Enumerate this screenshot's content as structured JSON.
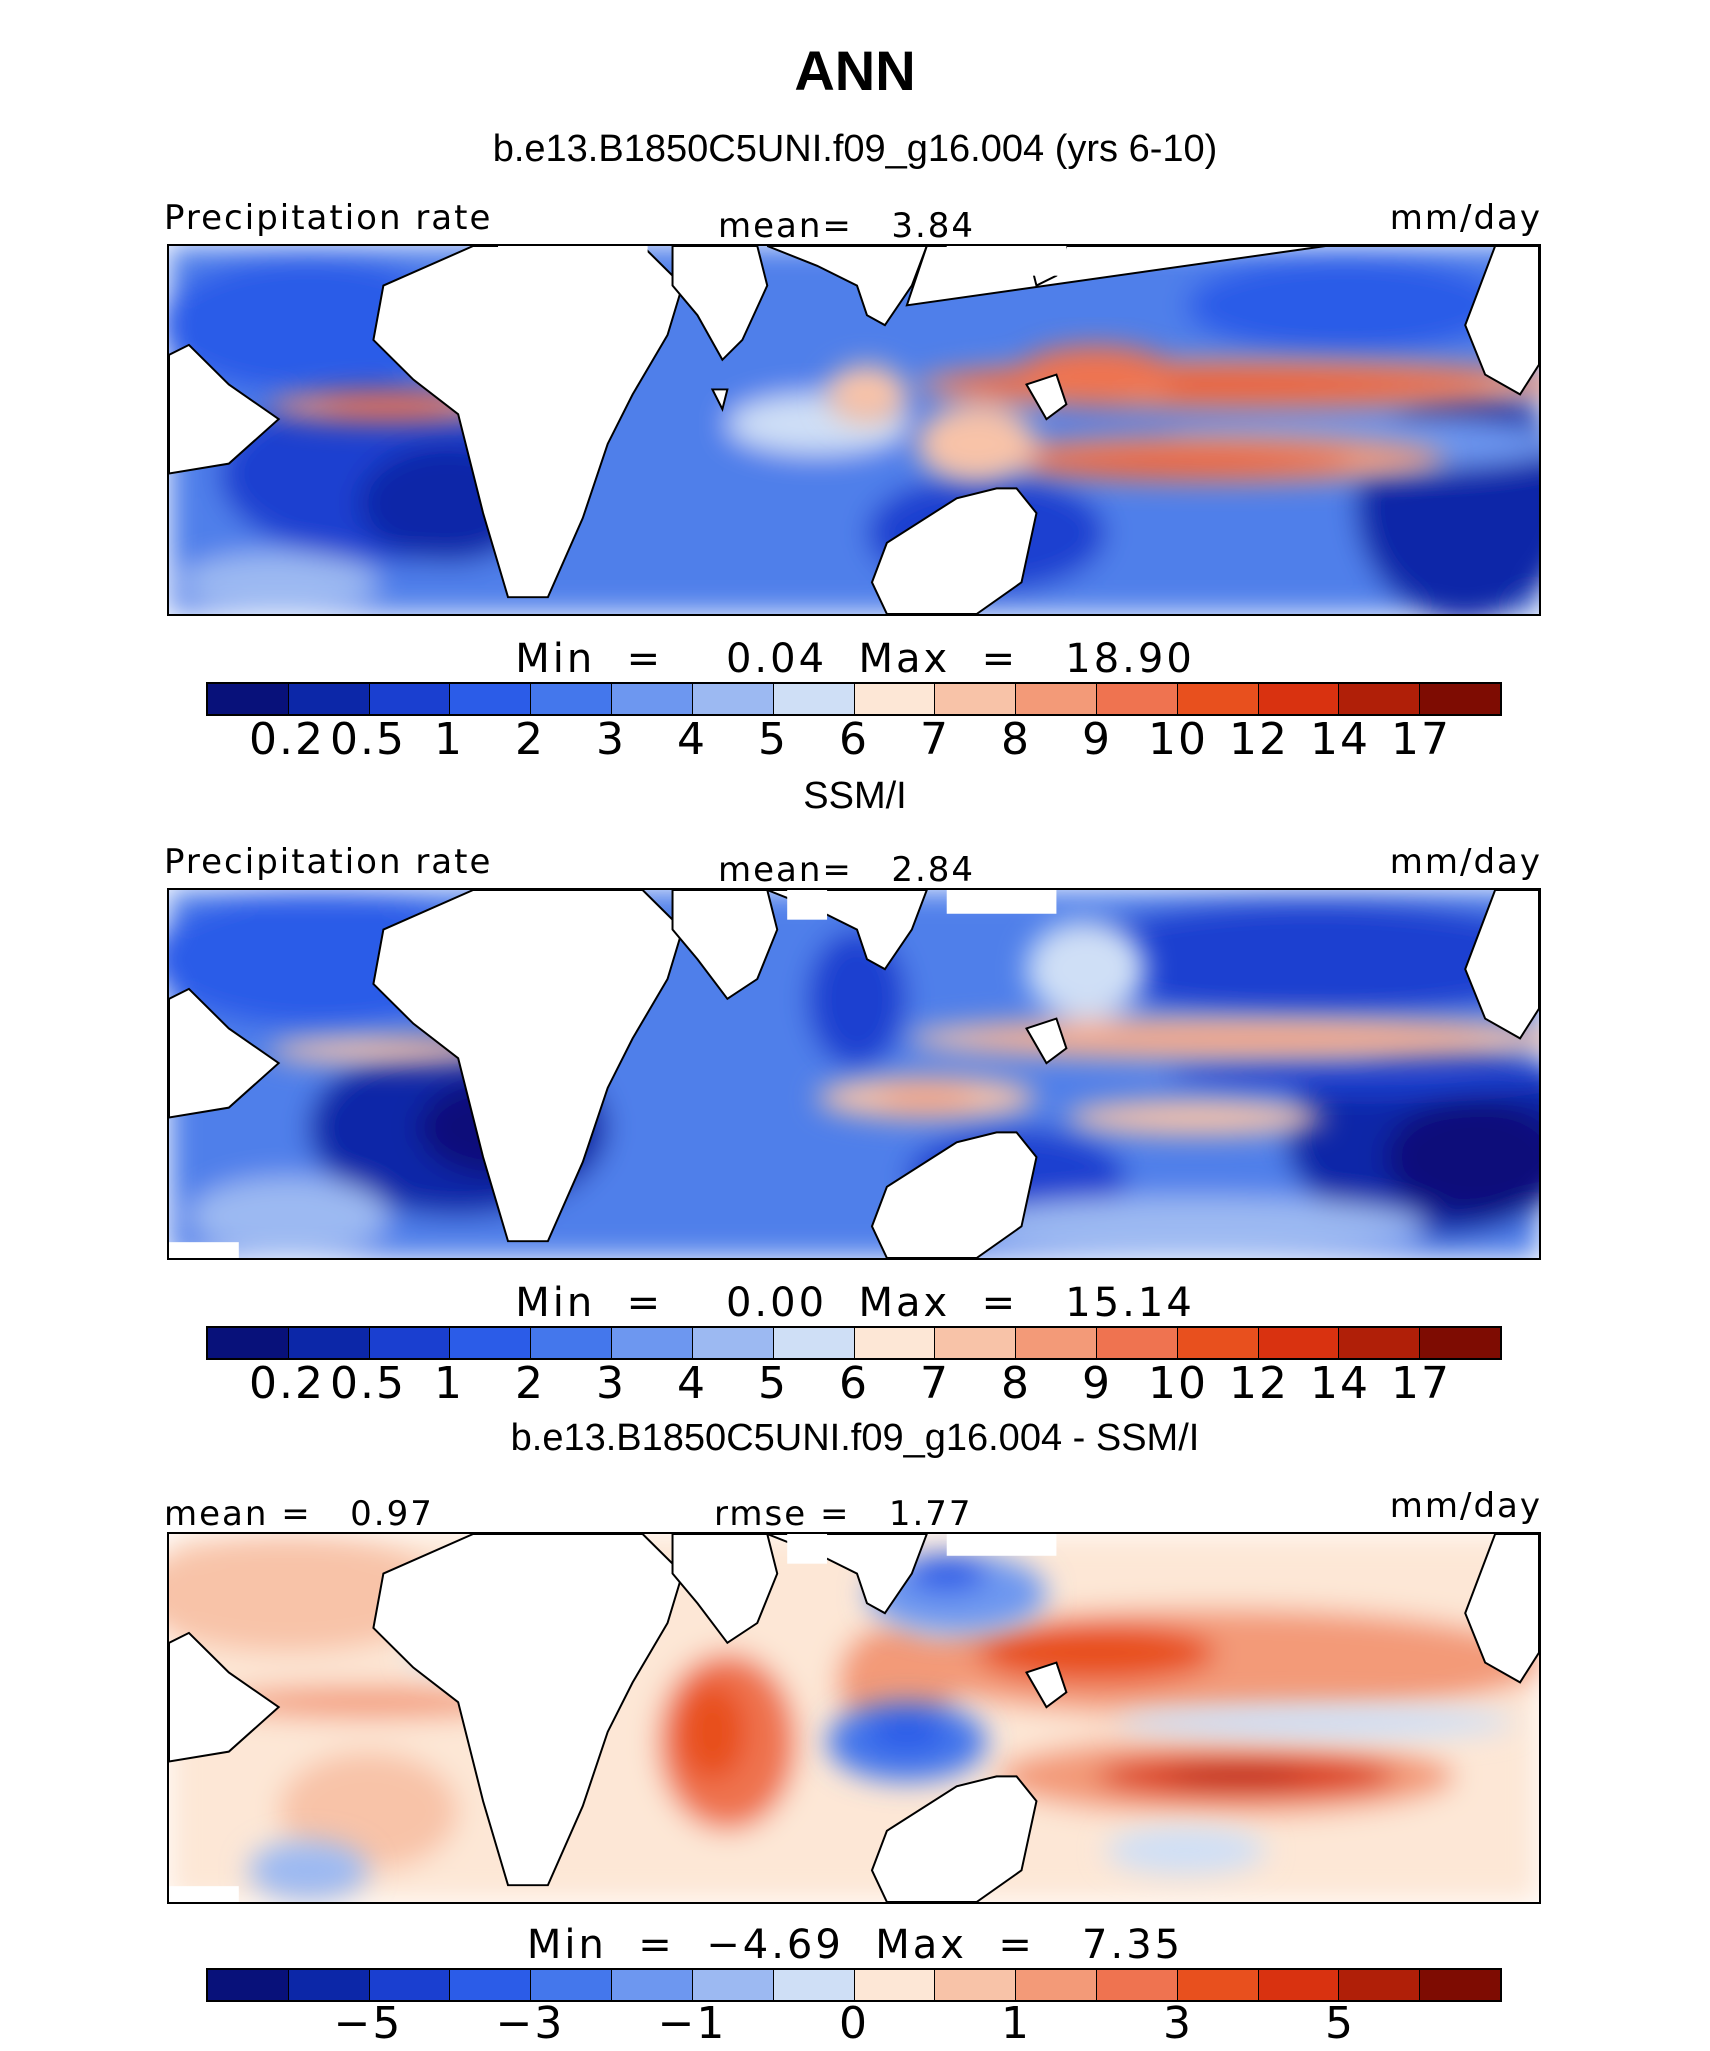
{
  "title": "ANN",
  "colors": {
    "abs_scale": [
      "#08117a",
      "#0c27a8",
      "#1a3fd0",
      "#2b5ce8",
      "#4477ec",
      "#6d97f0",
      "#9cb9f2",
      "#cfdff6",
      "#fde7d6",
      "#f8c3a8",
      "#f39a78",
      "#ef7350",
      "#e8501e",
      "#d93210",
      "#b01f08",
      "#7e0c02"
    ],
    "diff_scale": [
      "#08117a",
      "#0c27a8",
      "#1a3fd0",
      "#2b5ce8",
      "#4477ec",
      "#6d97f0",
      "#9cb9f2",
      "#cfdff6",
      "#fde7d6",
      "#f8c3a8",
      "#f39a78",
      "#ef7350",
      "#e8501e",
      "#d93210",
      "#b01f08",
      "#7e0c02"
    ]
  },
  "panels": [
    {
      "title": "b.e13.B1850C5UNI.f09_g16.004 (yrs 6-10)",
      "left_label": "Precipitation rate",
      "center_label": "mean=   3.84",
      "units": "mm/day",
      "minmax": "Min  =    0.04  Max  =   18.90",
      "tick_labels": [
        "0.2",
        "0.5",
        "1",
        "2",
        "3",
        "4",
        "5",
        "6",
        "7",
        "8",
        "9",
        "10",
        "12",
        "14",
        "17"
      ],
      "mean": 3.84,
      "min": 0.04,
      "max": 18.9
    },
    {
      "title": "SSM/I",
      "left_label": "Precipitation rate",
      "center_label": "mean=   2.84",
      "units": "mm/day",
      "minmax": "Min  =    0.00  Max  =   15.14",
      "tick_labels": [
        "0.2",
        "0.5",
        "1",
        "2",
        "3",
        "4",
        "5",
        "6",
        "7",
        "8",
        "9",
        "10",
        "12",
        "14",
        "17"
      ],
      "mean": 2.84,
      "min": 0.0,
      "max": 15.14
    },
    {
      "title": "b.e13.B1850C5UNI.f09_g16.004 - SSM/I",
      "left_label": "mean =   0.97",
      "center_label": "rmse =   1.77",
      "units": "mm/day",
      "minmax": "Min  =  −4.69  Max  =   7.35",
      "tick_labels": [
        "−5",
        "−3",
        "−1",
        "0",
        "1",
        "3",
        "5"
      ],
      "mean": 0.97,
      "rmse": 1.77,
      "min": -4.69,
      "max": 7.35
    }
  ]
}
